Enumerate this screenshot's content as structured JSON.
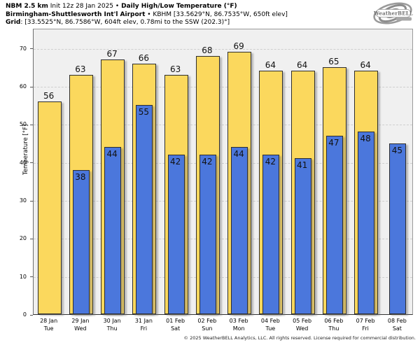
{
  "header": {
    "line1": {
      "model": "NBM 2.5 km",
      "init": " Init 12z 28 Jan 2025 • ",
      "title": "Daily High/Low Temperature (°F)"
    },
    "line2": {
      "station": "Birmingham-Shuttlesworth Int'l Airport",
      "details": " • KBHM [33.5629°N, 86.7535°W, 650ft elev]"
    },
    "line3": {
      "label": "Grid",
      "details": ": [33.5525°N, 86.7586°W, 604ft elev, 0.78mi to the SSW (202.3)°]"
    }
  },
  "logo": {
    "text": "WeatherBELL"
  },
  "chart_data": {
    "type": "bar",
    "title": "NBM 2.5 km Init 12z 28 Jan 2025 • Daily High/Low Temperature (°F)",
    "ylabel": "Temperature [°F]",
    "ylim": [
      0,
      75.3
    ],
    "yticks": [
      0,
      10,
      20,
      30,
      40,
      50,
      60,
      70
    ],
    "grid": "horizontal-dashed",
    "legend": "none",
    "categories": [
      {
        "date": "28 Jan",
        "day": "Tue"
      },
      {
        "date": "29 Jan",
        "day": "Wed"
      },
      {
        "date": "30 Jan",
        "day": "Thu"
      },
      {
        "date": "31 Jan",
        "day": "Fri"
      },
      {
        "date": "01 Feb",
        "day": "Sat"
      },
      {
        "date": "02 Feb",
        "day": "Sun"
      },
      {
        "date": "03 Feb",
        "day": "Mon"
      },
      {
        "date": "04 Feb",
        "day": "Tue"
      },
      {
        "date": "05 Feb",
        "day": "Wed"
      },
      {
        "date": "06 Feb",
        "day": "Thu"
      },
      {
        "date": "07 Feb",
        "day": "Fri"
      },
      {
        "date": "08 Feb",
        "day": "Sat"
      }
    ],
    "series": [
      {
        "name": "High",
        "color": "#FBD85D",
        "values": [
          56,
          63,
          67,
          66,
          63,
          68,
          69,
          64,
          64,
          65,
          64,
          null
        ]
      },
      {
        "name": "Low",
        "color": "#4B77DC",
        "values": [
          null,
          38,
          44,
          55,
          42,
          42,
          44,
          42,
          41,
          47,
          48,
          45
        ]
      }
    ]
  },
  "colors": {
    "high_bar": "#FBD85D",
    "low_bar": "#4B77DC",
    "plot_background": "#F0F0F0",
    "gridline": "#CFCFCF",
    "bar_border": "#2E2E2E"
  },
  "footer": {
    "copyright": "© 2025 WeatherBELL Analytics, LLC. All rights reserved. License required for commercial distribution."
  }
}
